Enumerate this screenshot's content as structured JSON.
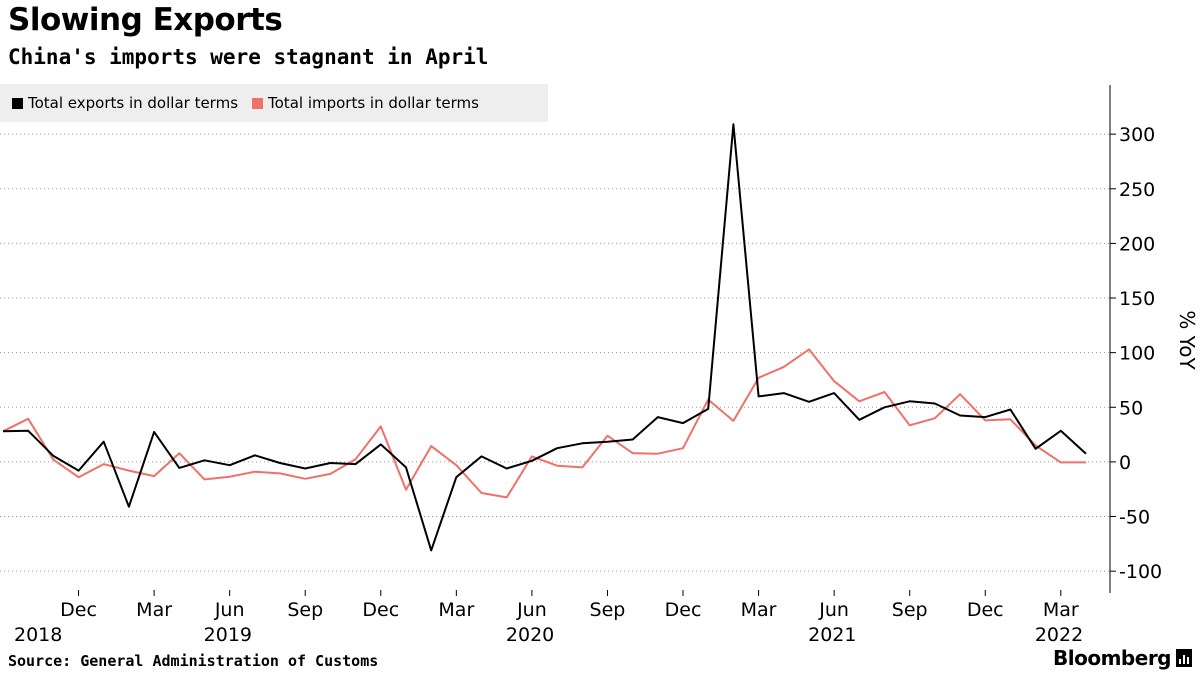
{
  "title": "Slowing Exports",
  "subtitle": "China's imports were stagnant in April",
  "source": "Source: General Administration of Customs",
  "brand": "Bloomberg",
  "colors": {
    "exports": "#000000",
    "imports": "#f0706a",
    "grid": "#999999",
    "legend_bg": "#eeeeee"
  },
  "chart_data": {
    "type": "line",
    "title": "Slowing Exports",
    "subtitle": "China's imports were stagnant in April",
    "ylabel": "% YoY",
    "xlabel": "",
    "ylim": [
      -120,
      345
    ],
    "yticks": [
      -100,
      -50,
      0,
      50,
      100,
      150,
      200,
      250,
      300
    ],
    "ytick_labels": [
      "-100",
      "-50",
      "0",
      "50",
      "100",
      "150",
      "200",
      "250",
      "300"
    ],
    "legend_position": "top-left",
    "x_months": [
      "2018-09",
      "2018-10",
      "2018-11",
      "2018-12",
      "2019-01",
      "2019-02",
      "2019-03",
      "2019-04",
      "2019-05",
      "2019-06",
      "2019-07",
      "2019-08",
      "2019-09",
      "2019-10",
      "2019-11",
      "2019-12",
      "2020-01",
      "2020-02",
      "2020-03",
      "2020-04",
      "2020-05",
      "2020-06",
      "2020-07",
      "2020-08",
      "2020-09",
      "2020-10",
      "2020-11",
      "2020-12",
      "2021-01",
      "2021-02",
      "2021-03",
      "2021-04",
      "2021-05",
      "2021-06",
      "2021-07",
      "2021-08",
      "2021-09",
      "2021-10",
      "2021-11",
      "2021-12",
      "2022-01",
      "2022-02",
      "2022-03",
      "2022-04"
    ],
    "x_tick_labels": [
      {
        "index": 3,
        "label": "Dec"
      },
      {
        "index": 6,
        "label": "Mar"
      },
      {
        "index": 9,
        "label": "Jun"
      },
      {
        "index": 12,
        "label": "Sep"
      },
      {
        "index": 15,
        "label": "Dec"
      },
      {
        "index": 18,
        "label": "Mar"
      },
      {
        "index": 21,
        "label": "Jun"
      },
      {
        "index": 24,
        "label": "Sep"
      },
      {
        "index": 27,
        "label": "Dec"
      },
      {
        "index": 30,
        "label": "Mar"
      },
      {
        "index": 33,
        "label": "Jun"
      },
      {
        "index": 36,
        "label": "Sep"
      },
      {
        "index": 39,
        "label": "Dec"
      },
      {
        "index": 42,
        "label": "Mar"
      }
    ],
    "year_labels": [
      {
        "index": 0,
        "label": "2018"
      },
      {
        "index": 9,
        "label": "2019"
      },
      {
        "index": 21,
        "label": "2020"
      },
      {
        "index": 33,
        "label": "2021"
      },
      {
        "index": 42,
        "label": "2022"
      }
    ],
    "series": [
      {
        "name": "Total exports in dollar terms",
        "color": "#000000",
        "values": [
          28,
          28.5,
          5.5,
          -8,
          18.5,
          -41,
          27.5,
          -5.5,
          1.5,
          -3,
          6,
          -1,
          -6,
          -1,
          -2,
          16,
          -5,
          -81,
          -14,
          5,
          -6,
          1,
          12.5,
          17,
          18.5,
          20.5,
          41,
          35.5,
          48.5,
          309,
          60,
          63,
          55,
          63,
          38.5,
          50,
          55.5,
          53.5,
          42.5,
          41,
          48,
          12,
          28.5,
          7.5
        ]
      },
      {
        "name": "Total imports in dollar terms",
        "color": "#f0706a",
        "values": [
          28,
          39.5,
          2,
          -14,
          -2,
          -8,
          -13,
          8,
          -16,
          -13.5,
          -9,
          -10.5,
          -15.5,
          -11,
          2.5,
          32.5,
          -25.5,
          14.5,
          -3,
          -28.5,
          -32.5,
          5,
          -3.5,
          -5,
          24,
          8,
          7.5,
          12.5,
          57,
          37.5,
          77,
          87,
          103,
          74,
          55.5,
          64,
          33.5,
          40,
          62,
          38,
          39,
          15,
          -0.5,
          -0.5
        ]
      }
    ]
  }
}
